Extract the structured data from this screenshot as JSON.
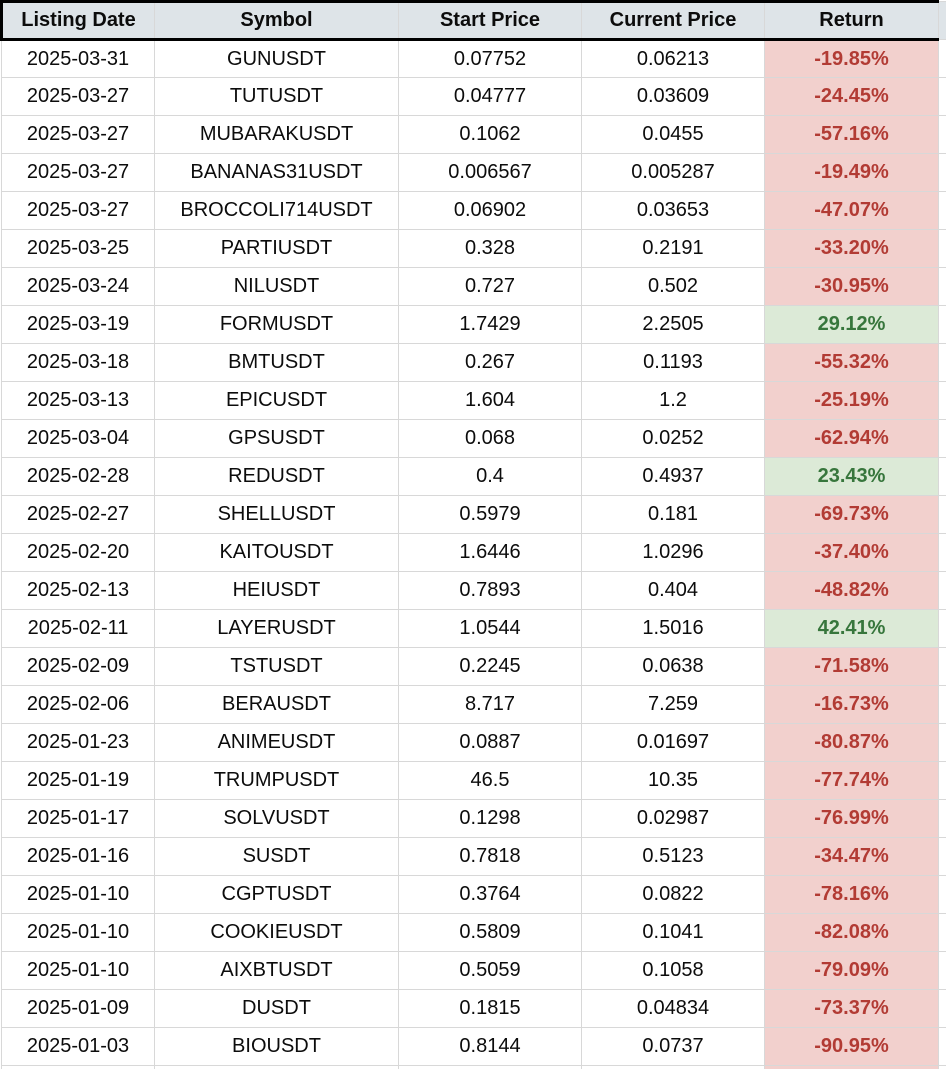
{
  "table": {
    "columns": [
      "Listing Date",
      "Symbol",
      "Start Price",
      "Current Price",
      "Return"
    ],
    "rows": [
      {
        "listing_date": "2025-03-31",
        "symbol": "GUNUSDT",
        "start_price": "0.07752",
        "current_price": "0.06213",
        "return": "-19.85%"
      },
      {
        "listing_date": "2025-03-27",
        "symbol": "TUTUSDT",
        "start_price": "0.04777",
        "current_price": "0.03609",
        "return": "-24.45%"
      },
      {
        "listing_date": "2025-03-27",
        "symbol": "MUBARAKUSDT",
        "start_price": "0.1062",
        "current_price": "0.0455",
        "return": "-57.16%"
      },
      {
        "listing_date": "2025-03-27",
        "symbol": "BANANAS31USDT",
        "start_price": "0.006567",
        "current_price": "0.005287",
        "return": "-19.49%"
      },
      {
        "listing_date": "2025-03-27",
        "symbol": "BROCCOLI714USDT",
        "start_price": "0.06902",
        "current_price": "0.03653",
        "return": "-47.07%"
      },
      {
        "listing_date": "2025-03-25",
        "symbol": "PARTIUSDT",
        "start_price": "0.328",
        "current_price": "0.2191",
        "return": "-33.20%"
      },
      {
        "listing_date": "2025-03-24",
        "symbol": "NILUSDT",
        "start_price": "0.727",
        "current_price": "0.502",
        "return": "-30.95%"
      },
      {
        "listing_date": "2025-03-19",
        "symbol": "FORMUSDT",
        "start_price": "1.7429",
        "current_price": "2.2505",
        "return": "29.12%"
      },
      {
        "listing_date": "2025-03-18",
        "symbol": "BMTUSDT",
        "start_price": "0.267",
        "current_price": "0.1193",
        "return": "-55.32%"
      },
      {
        "listing_date": "2025-03-13",
        "symbol": "EPICUSDT",
        "start_price": "1.604",
        "current_price": "1.2",
        "return": "-25.19%"
      },
      {
        "listing_date": "2025-03-04",
        "symbol": "GPSUSDT",
        "start_price": "0.068",
        "current_price": "0.0252",
        "return": "-62.94%"
      },
      {
        "listing_date": "2025-02-28",
        "symbol": "REDUSDT",
        "start_price": "0.4",
        "current_price": "0.4937",
        "return": "23.43%"
      },
      {
        "listing_date": "2025-02-27",
        "symbol": "SHELLUSDT",
        "start_price": "0.5979",
        "current_price": "0.181",
        "return": "-69.73%"
      },
      {
        "listing_date": "2025-02-20",
        "symbol": "KAITOUSDT",
        "start_price": "1.6446",
        "current_price": "1.0296",
        "return": "-37.40%"
      },
      {
        "listing_date": "2025-02-13",
        "symbol": "HEIUSDT",
        "start_price": "0.7893",
        "current_price": "0.404",
        "return": "-48.82%"
      },
      {
        "listing_date": "2025-02-11",
        "symbol": "LAYERUSDT",
        "start_price": "1.0544",
        "current_price": "1.5016",
        "return": "42.41%"
      },
      {
        "listing_date": "2025-02-09",
        "symbol": "TSTUSDT",
        "start_price": "0.2245",
        "current_price": "0.0638",
        "return": "-71.58%"
      },
      {
        "listing_date": "2025-02-06",
        "symbol": "BERAUSDT",
        "start_price": "8.717",
        "current_price": "7.259",
        "return": "-16.73%"
      },
      {
        "listing_date": "2025-01-23",
        "symbol": "ANIMEUSDT",
        "start_price": "0.0887",
        "current_price": "0.01697",
        "return": "-80.87%"
      },
      {
        "listing_date": "2025-01-19",
        "symbol": "TRUMPUSDT",
        "start_price": "46.5",
        "current_price": "10.35",
        "return": "-77.74%"
      },
      {
        "listing_date": "2025-01-17",
        "symbol": "SOLVUSDT",
        "start_price": "0.1298",
        "current_price": "0.02987",
        "return": "-76.99%"
      },
      {
        "listing_date": "2025-01-16",
        "symbol": "SUSDT",
        "start_price": "0.7818",
        "current_price": "0.5123",
        "return": "-34.47%"
      },
      {
        "listing_date": "2025-01-10",
        "symbol": "CGPTUSDT",
        "start_price": "0.3764",
        "current_price": "0.0822",
        "return": "-78.16%"
      },
      {
        "listing_date": "2025-01-10",
        "symbol": "COOKIEUSDT",
        "start_price": "0.5809",
        "current_price": "0.1041",
        "return": "-82.08%"
      },
      {
        "listing_date": "2025-01-10",
        "symbol": "AIXBTUSDT",
        "start_price": "0.5059",
        "current_price": "0.1058",
        "return": "-79.09%"
      },
      {
        "listing_date": "2025-01-09",
        "symbol": "DUSDT",
        "start_price": "0.1815",
        "current_price": "0.04834",
        "return": "-73.37%"
      },
      {
        "listing_date": "2025-01-03",
        "symbol": "BIOUSDT",
        "start_price": "0.8144",
        "current_price": "0.0737",
        "return": "-90.95%"
      }
    ]
  },
  "colors": {
    "header_bg": "#dee4e8",
    "header_border": "#000000",
    "gridline": "#d8d8d8",
    "text": "#0c0c0c",
    "negative_bg": "#f2d0cd",
    "negative_text": "#b23b34",
    "positive_bg": "#dcead7",
    "positive_text": "#37763c"
  }
}
